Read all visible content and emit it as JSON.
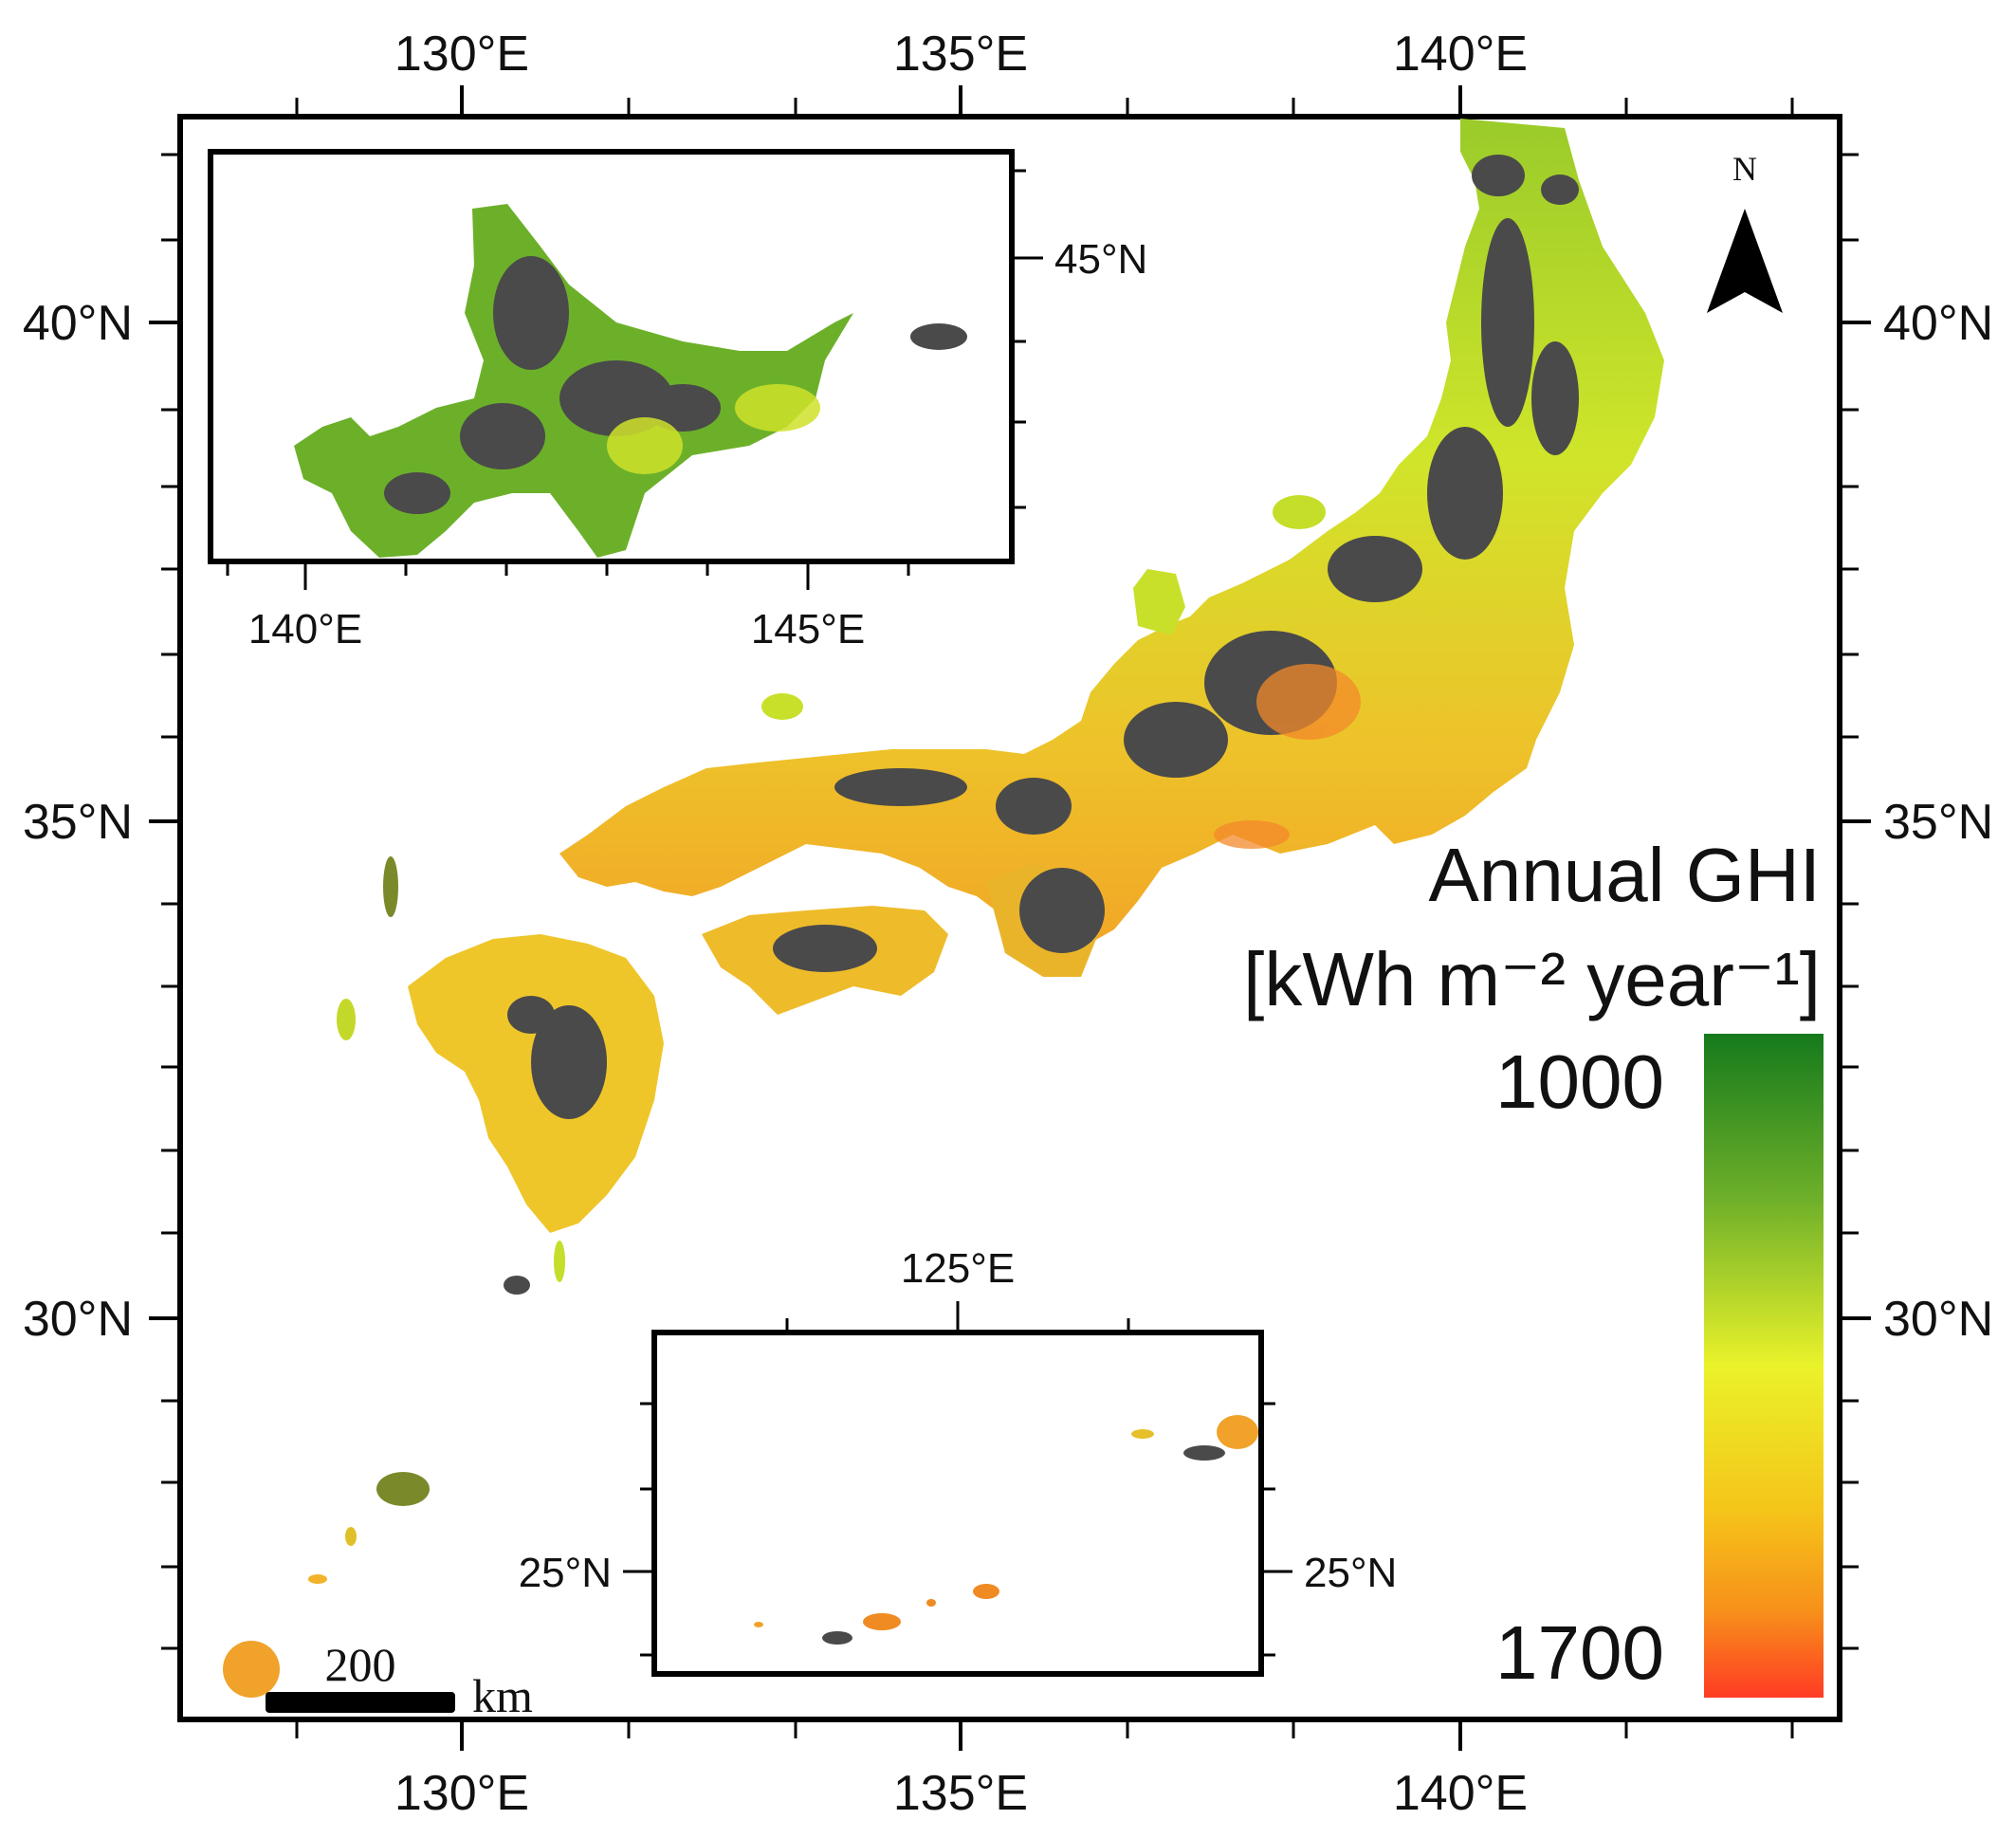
{
  "map": {
    "top_longitude_labels": [
      "130°E",
      "135°E",
      "140°E"
    ],
    "bottom_longitude_labels": [
      "130°E",
      "135°E",
      "140°E"
    ],
    "left_latitude_labels": [
      "40°N",
      "35°N",
      "30°N"
    ],
    "right_latitude_labels": [
      "40°N",
      "35°N",
      "30°N"
    ],
    "north_arrow_label": "N",
    "scale_bar": {
      "value": "200",
      "unit": "km"
    }
  },
  "inset_hokkaido": {
    "latitude_labels": [
      "45°N"
    ],
    "longitude_labels": [
      "140°E",
      "145°E"
    ]
  },
  "inset_okinawa": {
    "longitude_labels": [
      "125°E"
    ],
    "left_latitude_labels": [
      "25°N"
    ],
    "right_latitude_labels": [
      "25°N"
    ]
  },
  "legend": {
    "title_line1": "Annual GHI",
    "title_line2": "[kWh m⁻² year⁻¹]",
    "max_label": "1000",
    "min_label": "1700",
    "colors": {
      "low_ghi": "#1a7a1e",
      "mid_ghi": "#eaf22a",
      "high_ghi": "#ff3b24",
      "no_data_terrain": "#4a4a4a"
    }
  }
}
